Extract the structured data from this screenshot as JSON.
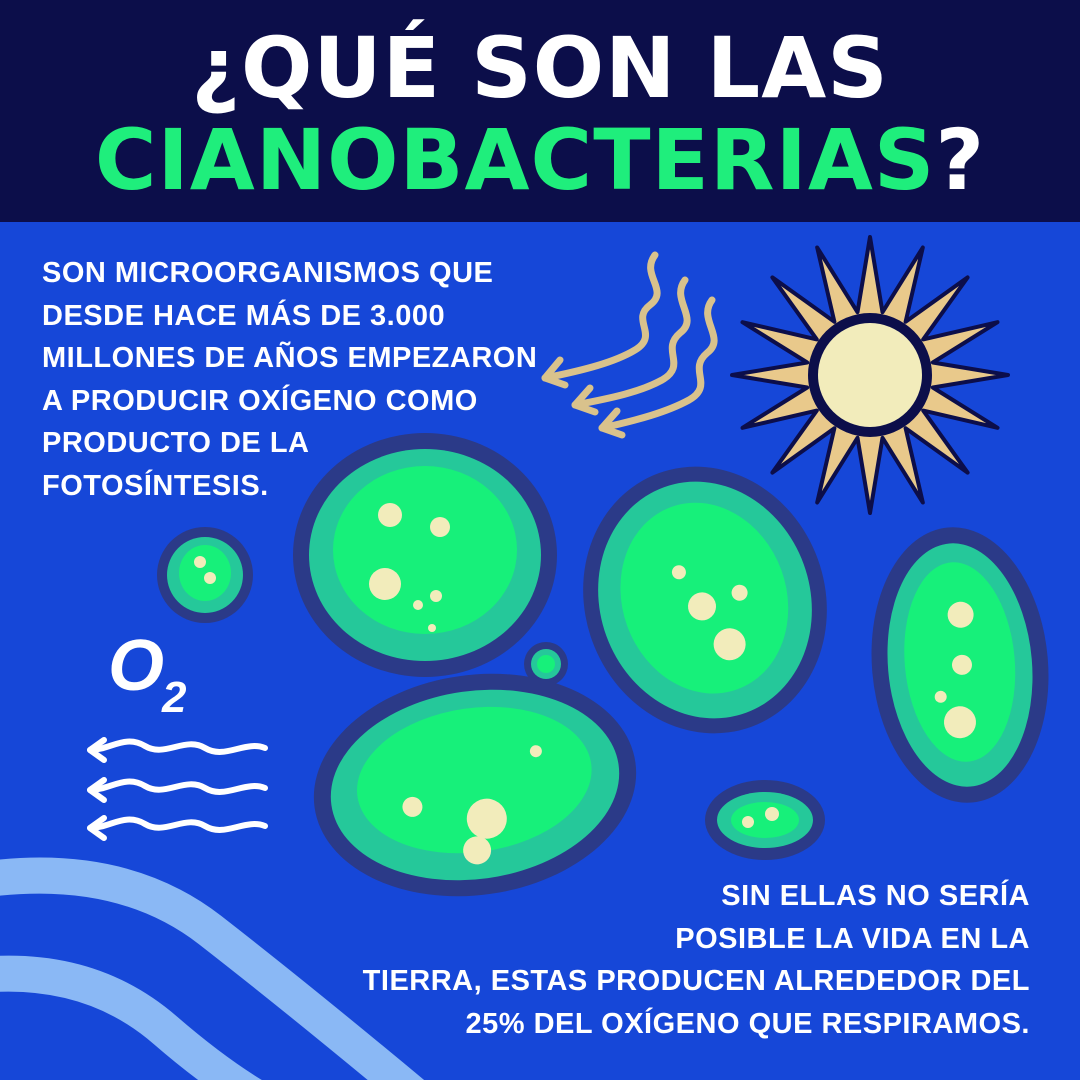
{
  "title": {
    "line1": "¿QUÉ SON LAS",
    "highlight": "CIANOBACTERIAS",
    "qmark": "?"
  },
  "intro": {
    "lines": [
      "Son microorganismos que",
      "desde hace más de 3.000",
      "millones de años empezaron",
      "a producir oxígeno como",
      "producto de la",
      "fotosíntesis."
    ]
  },
  "outro": {
    "lines": [
      "Sin ellas no sería",
      "posible la vida en la",
      "Tierra, estas producen alrededor del",
      "25% del oxígeno que respiramos."
    ]
  },
  "oxygen_label": {
    "base": "O",
    "subscript": "2"
  },
  "icons": [
    "sun-icon",
    "sunlight-ray-icon",
    "cyanobacteria-cell-icon",
    "oxygen-wind-icon",
    "wave-decoration"
  ],
  "colors": {
    "header_bg": "#0c0e4a",
    "background": "#1647d8",
    "highlight": "#1fee7c",
    "text": "#ffffff",
    "cell_outer": "#2b3a88",
    "cell_mid": "#25c89a",
    "cell_inner": "#17f07a",
    "cell_spot": "#f2ecbb",
    "sun": "#e9c98b",
    "ray": "#d9c28c",
    "wave": "#8ab8f5"
  }
}
